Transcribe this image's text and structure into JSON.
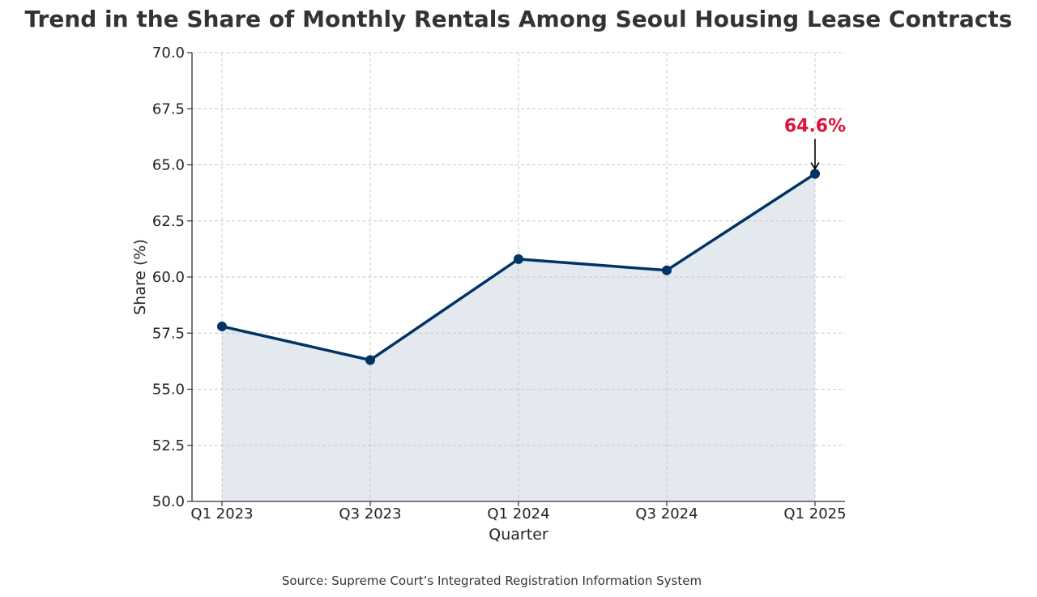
{
  "chart_data": {
    "type": "area",
    "title": "Trend in the Share of Monthly Rentals Among Seoul Housing Lease Contracts",
    "xlabel": "Quarter",
    "ylabel": "Share (%)",
    "categories": [
      "Q1 2023",
      "Q3 2023",
      "Q1 2024",
      "Q3 2024",
      "Q1 2025"
    ],
    "series": [
      {
        "values": [
          57.8,
          56.3,
          60.8,
          60.3,
          64.6
        ]
      }
    ],
    "ylim": [
      50.0,
      70.0
    ],
    "yticks": [
      "50.0",
      "52.5",
      "55.0",
      "57.5",
      "60.0",
      "62.5",
      "65.0",
      "67.5",
      "70.0"
    ],
    "grid": true,
    "annotation": {
      "text": "64.6%",
      "category": "Q1 2025",
      "value": 64.6
    },
    "source": "Source: Supreme Court’s Integrated Registration Information System",
    "colors": {
      "line": "#003366",
      "fill": "#e3e9ee",
      "annotation": "#dc143c",
      "grid": "#c8c8c8",
      "axis": "#333333",
      "title": "#333333"
    }
  }
}
